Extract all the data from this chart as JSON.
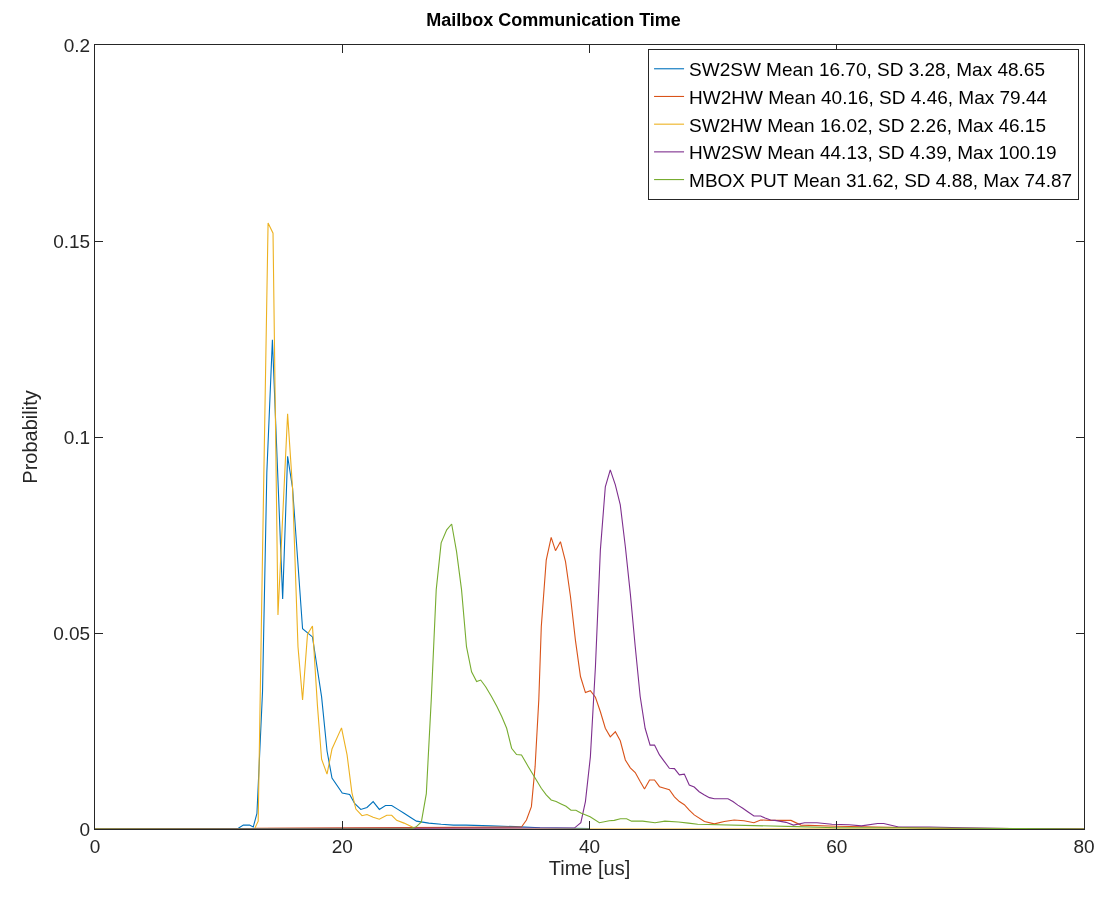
{
  "chart_data": {
    "type": "line",
    "title": "Mailbox Communication Time",
    "xlabel": "Time [us]",
    "ylabel": "Probability",
    "xlim": [
      0,
      80
    ],
    "ylim": [
      0,
      0.2
    ],
    "xticks": [
      0,
      20,
      40,
      60,
      80
    ],
    "yticks": [
      0,
      0.05,
      0.1,
      0.15,
      0.2
    ],
    "legend": "top right",
    "line_style": "solid",
    "series": [
      {
        "name": "SW2SW Mean 16.70, SD 3.28, Max 48.65",
        "color": "#0072bd",
        "x": [
          0,
          11.5,
          12.0,
          12.5,
          12.8,
          13.1,
          13.55,
          13.9,
          14.35,
          15.18,
          15.58,
          15.98,
          16.79,
          17.59,
          18.33,
          18.77,
          19.17,
          20.0,
          20.6,
          21.0,
          21.5,
          22.0,
          22.5,
          23.0,
          23.5,
          24.0,
          24.5,
          25.0,
          25.5,
          26.0,
          27.0,
          28.0,
          29.0,
          30.0,
          32.0,
          34.0,
          36.0,
          40.0
        ],
        "values": [
          0,
          0,
          0.001,
          0.001,
          0.0005,
          0.004,
          0.035,
          0.091,
          0.1248,
          0.0587,
          0.0951,
          0.087,
          0.0511,
          0.049,
          0.0337,
          0.0199,
          0.013,
          0.0092,
          0.0088,
          0.0065,
          0.005,
          0.0055,
          0.007,
          0.005,
          0.006,
          0.006,
          0.005,
          0.004,
          0.003,
          0.002,
          0.0015,
          0.0012,
          0.001,
          0.001,
          0.0008,
          0.0006,
          0.0003,
          0.0001
        ]
      },
      {
        "name": "HW2HW Mean 40.16, SD 4.46, Max 79.44",
        "color": "#d95319",
        "x": [
          0,
          34.5,
          34.9,
          35.3,
          35.6,
          35.9,
          36.1,
          36.5,
          36.9,
          37.25,
          37.65,
          38.06,
          38.46,
          38.86,
          39.27,
          39.67,
          40.07,
          40.48,
          40.88,
          41.28,
          41.68,
          42.09,
          42.49,
          42.9,
          43.3,
          43.7,
          44.1,
          44.45,
          44.86,
          45.26,
          45.66,
          46.06,
          46.46,
          46.87,
          47.27,
          47.67,
          48.07,
          48.47,
          49.3,
          50.1,
          50.9,
          51.7,
          52.5,
          53.3,
          53.85,
          54.65,
          55.5,
          56.3,
          57.1,
          60.0,
          65.4,
          68.0,
          80.0
        ],
        "values": [
          0,
          0.0005,
          0.0023,
          0.0057,
          0.0159,
          0.033,
          0.0516,
          0.0686,
          0.0744,
          0.071,
          0.0733,
          0.0682,
          0.0593,
          0.0482,
          0.0389,
          0.0348,
          0.0353,
          0.0336,
          0.0299,
          0.0257,
          0.0235,
          0.0248,
          0.0225,
          0.0176,
          0.0156,
          0.0144,
          0.0121,
          0.0102,
          0.0125,
          0.0125,
          0.0108,
          0.0104,
          0.01,
          0.0082,
          0.007,
          0.0062,
          0.0048,
          0.0036,
          0.0019,
          0.0013,
          0.0019,
          0.0023,
          0.0021,
          0.0016,
          0.0023,
          0.0022,
          0.0022,
          0.0022,
          0.001,
          0.0007,
          0.0004,
          0.0002,
          0
        ]
      },
      {
        "name": "SW2HW Mean 16.02, SD 2.26, Max 46.15",
        "color": "#edb120",
        "x": [
          0,
          12.9,
          13.2,
          13.55,
          14.0,
          14.4,
          14.8,
          15.58,
          15.98,
          16.42,
          16.79,
          17.19,
          17.59,
          17.99,
          18.33,
          18.77,
          19.17,
          19.94,
          20.39,
          20.78,
          21.1,
          21.6,
          22.0,
          22.5,
          23.0,
          23.6,
          24.0,
          24.4,
          25.0,
          26.0,
          80.0
        ],
        "values": [
          0,
          0,
          0.002,
          0.07,
          0.1546,
          0.152,
          0.0546,
          0.1059,
          0.087,
          0.0465,
          0.0329,
          0.0497,
          0.0518,
          0.0316,
          0.0178,
          0.014,
          0.0204,
          0.0258,
          0.0189,
          0.0093,
          0.0051,
          0.0034,
          0.0037,
          0.003,
          0.0025,
          0.0035,
          0.0035,
          0.0022,
          0.0015,
          0,
          0
        ]
      },
      {
        "name": "HW2SW Mean 44.13, SD 4.39, Max 100.19",
        "color": "#7e2f8e",
        "x": [
          0,
          38.8,
          39.3,
          39.67,
          40.07,
          40.48,
          40.88,
          41.28,
          41.68,
          42.09,
          42.49,
          42.9,
          43.3,
          43.7,
          44.1,
          44.5,
          44.9,
          45.26,
          45.66,
          46.06,
          46.46,
          46.87,
          47.27,
          47.67,
          48.07,
          48.47,
          48.87,
          49.3,
          49.7,
          50.1,
          51.2,
          51.6,
          52.0,
          52.4,
          52.8,
          53.3,
          53.85,
          54.2,
          54.65,
          55.0,
          55.9,
          56.5,
          57.4,
          58.4,
          59.6,
          61.0,
          62.0,
          63.3,
          63.8,
          65.0,
          67.5,
          70.2,
          74.0,
          80.0
        ],
        "values": [
          0,
          0.0003,
          0.0016,
          0.007,
          0.0184,
          0.0414,
          0.0712,
          0.0873,
          0.0916,
          0.0878,
          0.0827,
          0.072,
          0.0601,
          0.0465,
          0.0338,
          0.0257,
          0.0214,
          0.0214,
          0.0189,
          0.0172,
          0.0155,
          0.0154,
          0.0138,
          0.014,
          0.0112,
          0.0107,
          0.0095,
          0.0087,
          0.008,
          0.0077,
          0.0077,
          0.007,
          0.0061,
          0.0053,
          0.0044,
          0.0033,
          0.0033,
          0.0028,
          0.0023,
          0.0022,
          0.0017,
          0.001,
          0.0016,
          0.0016,
          0.0012,
          0.0011,
          0.0008,
          0.0014,
          0.0014,
          0.0005,
          0.0005,
          0.0003,
          0.0001,
          0
        ]
      },
      {
        "name": "MBOX PUT Mean 31.62, SD 4.88, Max 74.87",
        "color": "#77ac30",
        "x": [
          0,
          25.5,
          26.0,
          26.4,
          26.8,
          27.2,
          27.6,
          28.0,
          28.45,
          28.85,
          29.25,
          29.65,
          30.05,
          30.46,
          30.87,
          31.2,
          31.6,
          32.07,
          32.5,
          32.9,
          33.3,
          33.7,
          34.1,
          34.5,
          35.05,
          35.6,
          36.1,
          36.5,
          36.9,
          37.3,
          37.7,
          38.1,
          38.5,
          38.9,
          39.3,
          40.05,
          40.8,
          41.6,
          42.0,
          42.5,
          43.0,
          43.4,
          44.3,
          45.3,
          46.1,
          47.2,
          48.0,
          48.75,
          56.8,
          60.0,
          65.0,
          70.0,
          75.0,
          80.0
        ],
        "values": [
          0,
          0,
          0.0006,
          0.0018,
          0.009,
          0.033,
          0.061,
          0.073,
          0.0763,
          0.0778,
          0.0707,
          0.061,
          0.0465,
          0.0401,
          0.0376,
          0.038,
          0.0363,
          0.0338,
          0.0313,
          0.0287,
          0.0257,
          0.0206,
          0.019,
          0.0189,
          0.0159,
          0.013,
          0.0104,
          0.0087,
          0.0074,
          0.007,
          0.0064,
          0.0058,
          0.0048,
          0.0048,
          0.0041,
          0.0031,
          0.0016,
          0.0021,
          0.0022,
          0.0026,
          0.0026,
          0.002,
          0.002,
          0.0016,
          0.002,
          0.0018,
          0.0015,
          0.0012,
          0.0006,
          0.0003,
          0.0003,
          0.0002,
          0.0001,
          0
        ]
      }
    ]
  }
}
